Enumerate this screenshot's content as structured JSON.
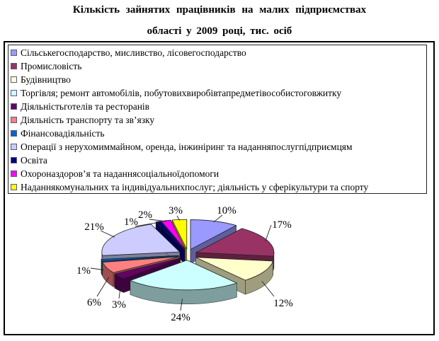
{
  "title": {
    "line1": "Кількість зайнятих працівників на малих підприємствах",
    "line2": "області у 2009 році, тис. осіб"
  },
  "chart_data": {
    "type": "pie",
    "pie_style": "3d-exploded",
    "title": "Кількість зайнятих працівників на малих підприємствах області у 2009 році, тис. осіб",
    "unit": "тис. осіб",
    "legend_position": "top",
    "value_suffix": "%",
    "categories": [
      "Сільськегосподарство, мисливство, лісовегосподарство",
      "Промисловість",
      "Будівництво",
      "Торгівля; ремонт автомобілів, побутовихвиробівтапредметівособистоговжитку",
      "Діяльністьготелів та ресторанів",
      "Діяльність транспорту та зв’язку",
      "Фінансовадіяльність",
      "Операції з нерухомиммайном, оренда, інжиніринг та наданняпослугпідприємцям",
      "Освіта",
      "Охороназдоров’я та наданнясоціальноїдопомоги",
      "Наданнякомунальних та індивідуальнихпослуг; діяльність у сферікультури та спорту"
    ],
    "values": [
      10,
      17,
      12,
      24,
      3,
      6,
      1,
      21,
      1,
      2,
      3
    ],
    "colors": [
      "#9999FF",
      "#993366",
      "#FFFFCC",
      "#CCFFFF",
      "#660066",
      "#FF8080",
      "#0066CC",
      "#CCCCFF",
      "#000080",
      "#FF00FF",
      "#FFFF00"
    ]
  }
}
